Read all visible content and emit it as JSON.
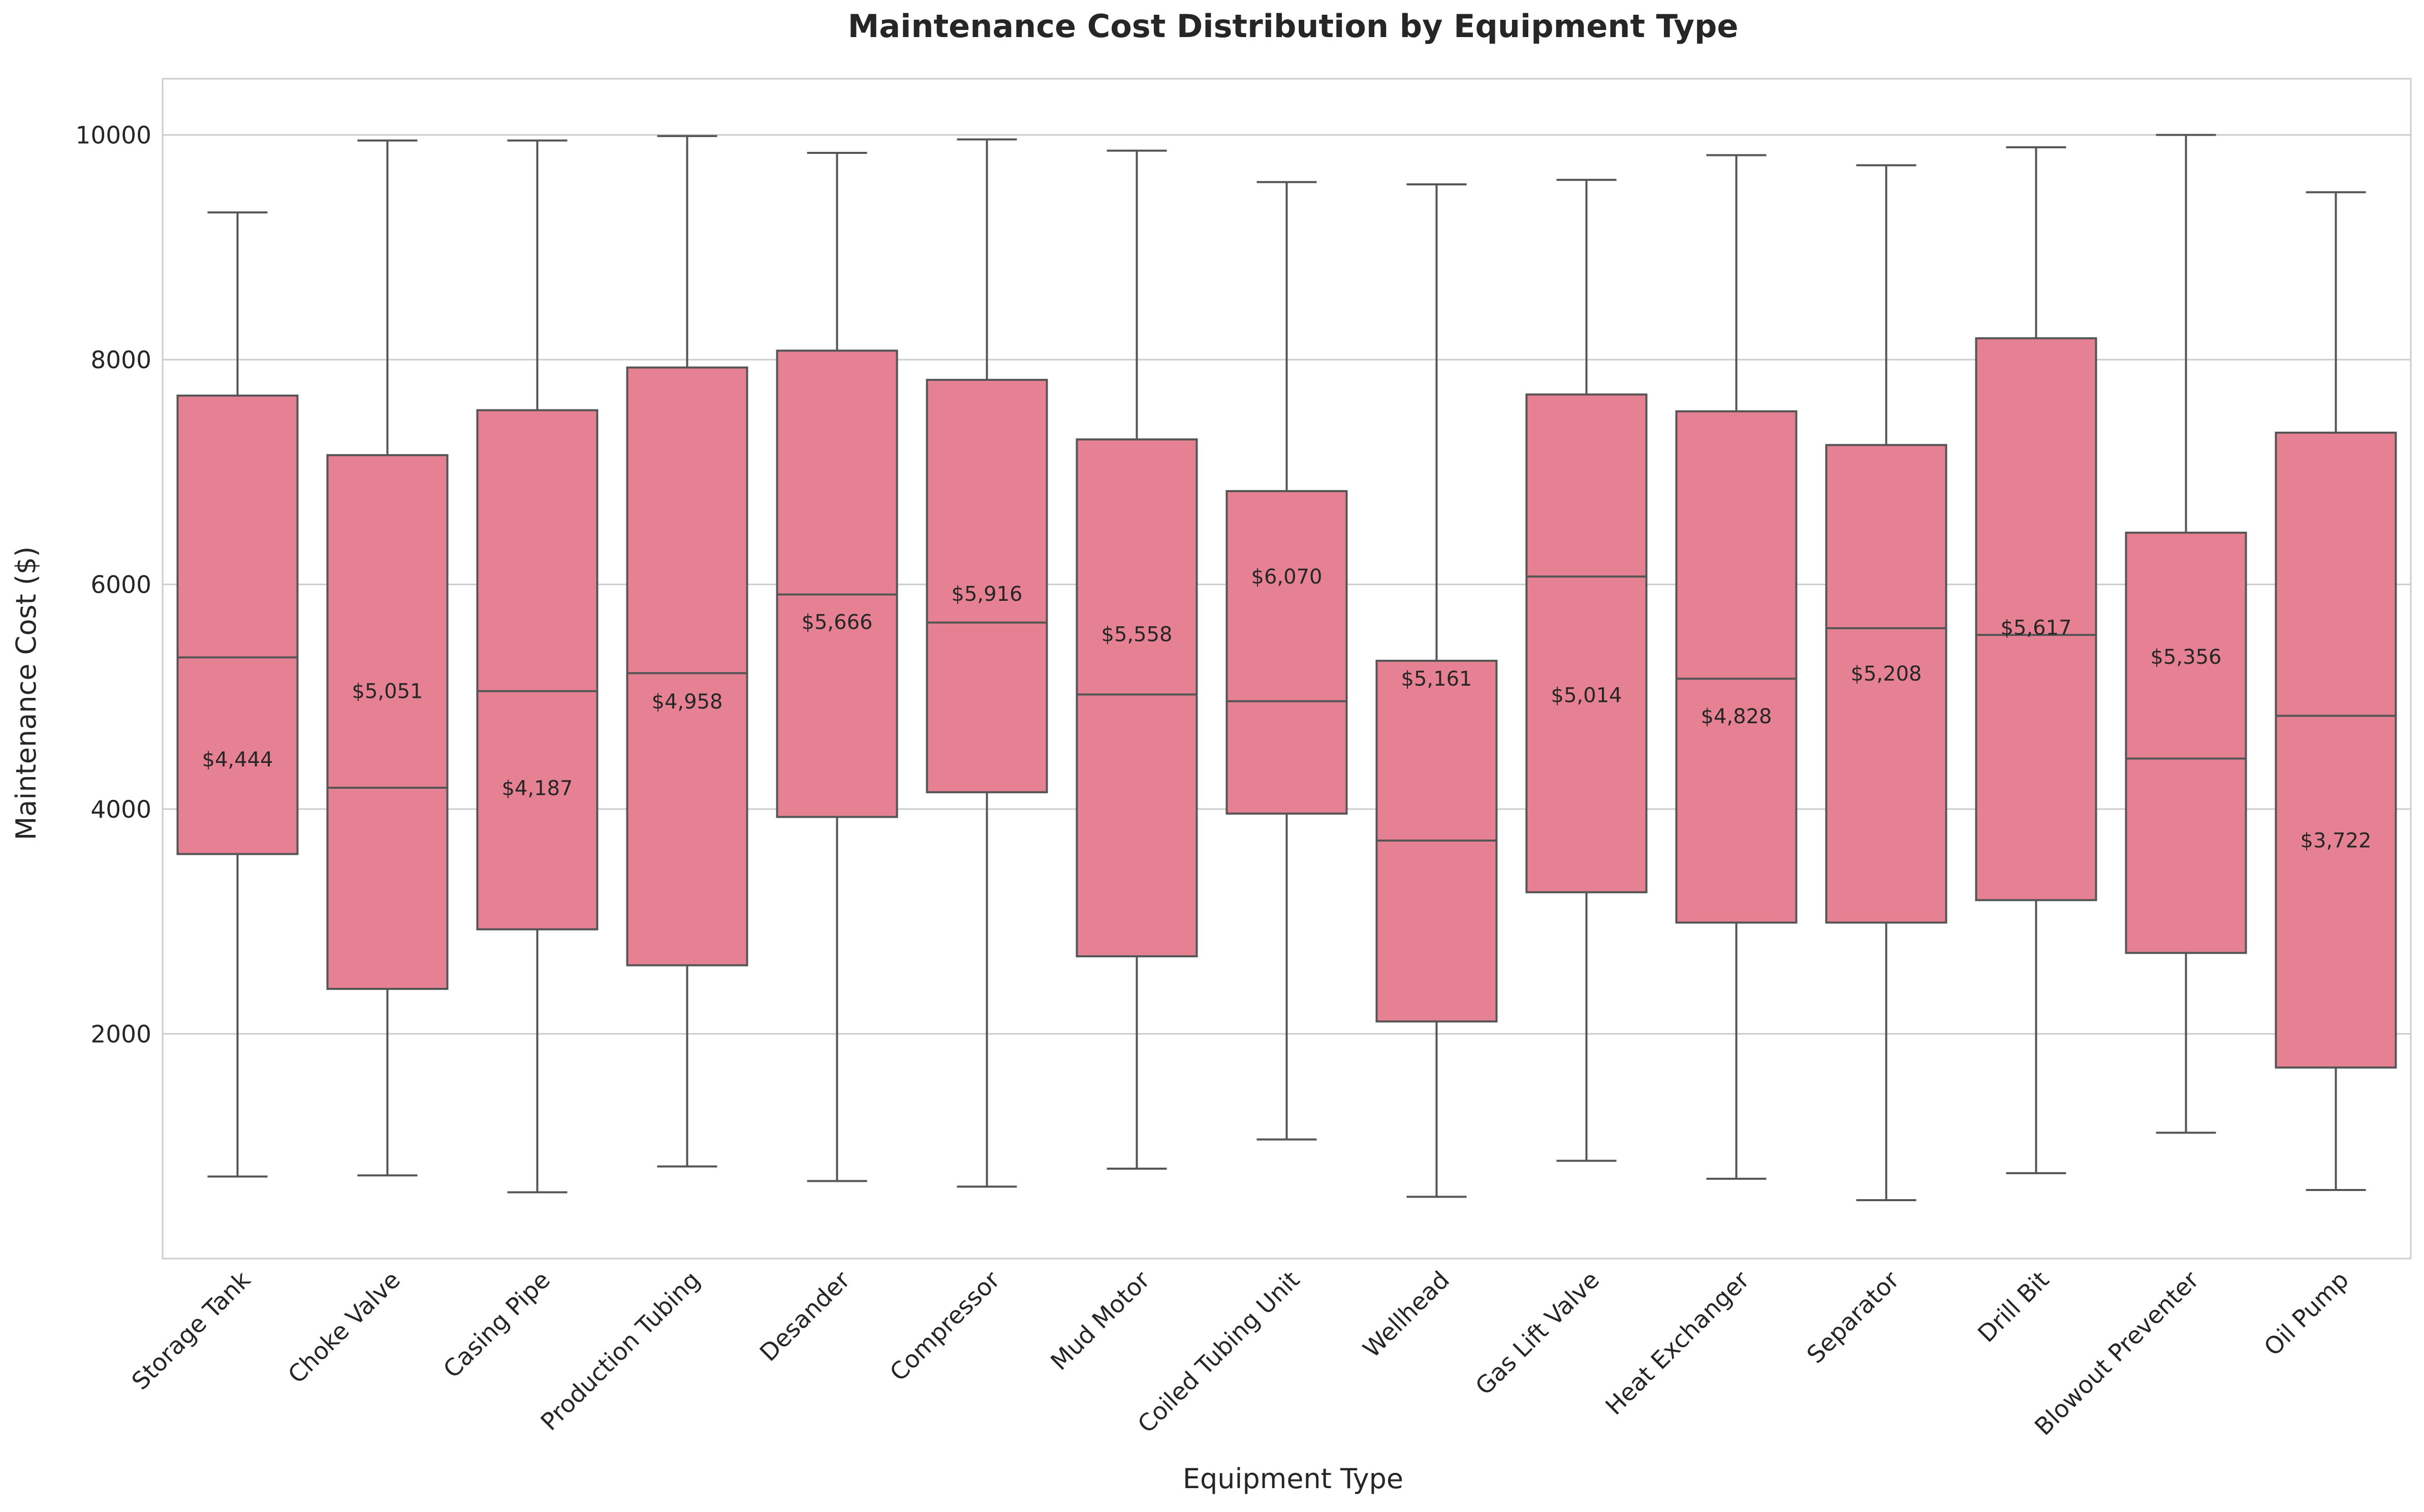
{
  "chart_data": {
    "type": "box",
    "title": "Maintenance Cost Distribution by Equipment Type",
    "xlabel": "Equipment Type",
    "ylabel": "Maintenance Cost ($)",
    "ylim": [
      0,
      10500
    ],
    "yticks": [
      2000,
      4000,
      6000,
      8000,
      10000
    ],
    "grid": true,
    "box_color": "#e68193",
    "edge_color": "#555555",
    "categories": [
      "Storage Tank",
      "Choke Valve",
      "Casing Pipe",
      "Production Tubing",
      "Desander",
      "Compressor",
      "Mud Motor",
      "Coiled Tubing Unit",
      "Wellhead",
      "Gas Lift Valve",
      "Heat Exchanger",
      "Separator",
      "Drill Bit",
      "Blowout Preventer",
      "Oil Pump"
    ],
    "boxes": [
      {
        "whisker_low": 730,
        "q1": 3600,
        "median": 5350,
        "q3": 7680,
        "whisker_high": 9310
      },
      {
        "whisker_low": 740,
        "q1": 2400,
        "median": 4190,
        "q3": 7150,
        "whisker_high": 9950
      },
      {
        "whisker_low": 590,
        "q1": 2930,
        "median": 5050,
        "q3": 7550,
        "whisker_high": 9950
      },
      {
        "whisker_low": 820,
        "q1": 2610,
        "median": 5210,
        "q3": 7930,
        "whisker_high": 9990
      },
      {
        "whisker_low": 690,
        "q1": 3930,
        "median": 5910,
        "q3": 8080,
        "whisker_high": 9840
      },
      {
        "whisker_low": 640,
        "q1": 4150,
        "median": 5660,
        "q3": 7820,
        "whisker_high": 9960
      },
      {
        "whisker_low": 800,
        "q1": 2690,
        "median": 5020,
        "q3": 7290,
        "whisker_high": 9860
      },
      {
        "whisker_low": 1060,
        "q1": 3960,
        "median": 4960,
        "q3": 6830,
        "whisker_high": 9580
      },
      {
        "whisker_low": 550,
        "q1": 2110,
        "median": 3720,
        "q3": 5320,
        "whisker_high": 9560
      },
      {
        "whisker_low": 870,
        "q1": 3260,
        "median": 6070,
        "q3": 7690,
        "whisker_high": 9600
      },
      {
        "whisker_low": 710,
        "q1": 2990,
        "median": 5160,
        "q3": 7540,
        "whisker_high": 9820
      },
      {
        "whisker_low": 520,
        "q1": 2990,
        "median": 5610,
        "q3": 7240,
        "whisker_high": 9730
      },
      {
        "whisker_low": 760,
        "q1": 3190,
        "median": 5550,
        "q3": 8190,
        "whisker_high": 9890
      },
      {
        "whisker_low": 1120,
        "q1": 2720,
        "median": 4450,
        "q3": 6460,
        "whisker_high": 10000
      },
      {
        "whisker_low": 610,
        "q1": 1700,
        "median": 4830,
        "q3": 7350,
        "whisker_high": 9490
      }
    ],
    "annotations": [
      {
        "text": "$4,444",
        "y": 4444
      },
      {
        "text": "$5,051",
        "y": 5051
      },
      {
        "text": "$4,187",
        "y": 4187
      },
      {
        "text": "$4,958",
        "y": 4958
      },
      {
        "text": "$5,666",
        "y": 5666
      },
      {
        "text": "$5,916",
        "y": 5916
      },
      {
        "text": "$5,558",
        "y": 5558
      },
      {
        "text": "$6,070",
        "y": 6070
      },
      {
        "text": "$5,161",
        "y": 5161
      },
      {
        "text": "$5,014",
        "y": 5014
      },
      {
        "text": "$4,828",
        "y": 4828
      },
      {
        "text": "$5,208",
        "y": 5208
      },
      {
        "text": "$5,617",
        "y": 5617
      },
      {
        "text": "$5,356",
        "y": 5356
      },
      {
        "text": "$3,722",
        "y": 3722
      }
    ]
  }
}
